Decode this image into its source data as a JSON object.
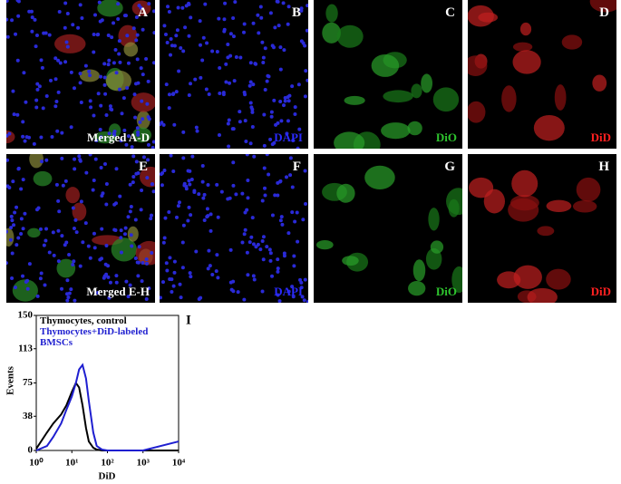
{
  "panels": [
    {
      "letter": "A",
      "caption": "Merged A-D"
    },
    {
      "letter": "B",
      "caption": "DAPI"
    },
    {
      "letter": "C",
      "caption": "DiO"
    },
    {
      "letter": "D",
      "caption": "DiD"
    },
    {
      "letter": "E",
      "caption": "Merged E-H"
    },
    {
      "letter": "F",
      "caption": "DAPI"
    },
    {
      "letter": "G",
      "caption": "DiO"
    },
    {
      "letter": "H",
      "caption": "DiD"
    }
  ],
  "chart_data": {
    "type": "line",
    "panel_letter": "I",
    "x_label": "DiD",
    "y_label": "Events",
    "log_x": true,
    "x": [
      1,
      2,
      3,
      5,
      7,
      10,
      13,
      16,
      20,
      25,
      30,
      40,
      50,
      70,
      100,
      1000,
      10000
    ],
    "series": [
      {
        "name": "Thymocytes, control",
        "color": "#000000",
        "values": [
          2,
          20,
          30,
          40,
          50,
          65,
          75,
          70,
          50,
          25,
          10,
          3,
          1,
          0,
          0,
          0,
          0
        ]
      },
      {
        "name": "Thymocytes+DiD-labeled BMSCs",
        "color": "#1f1fd0",
        "values": [
          0,
          5,
          15,
          30,
          45,
          60,
          75,
          90,
          95,
          80,
          55,
          20,
          5,
          1,
          0,
          0,
          10
        ]
      }
    ],
    "xlim": [
      1,
      10000
    ],
    "xticks": [
      {
        "value": 1,
        "label": "10⁰"
      },
      {
        "value": 10,
        "label": "10¹"
      },
      {
        "value": 100,
        "label": "10²"
      },
      {
        "value": 1000,
        "label": "10³"
      },
      {
        "value": 10000,
        "label": "10⁴"
      }
    ],
    "ylim": [
      0,
      150
    ],
    "yticks": [
      0,
      38,
      75,
      113,
      150
    ]
  }
}
